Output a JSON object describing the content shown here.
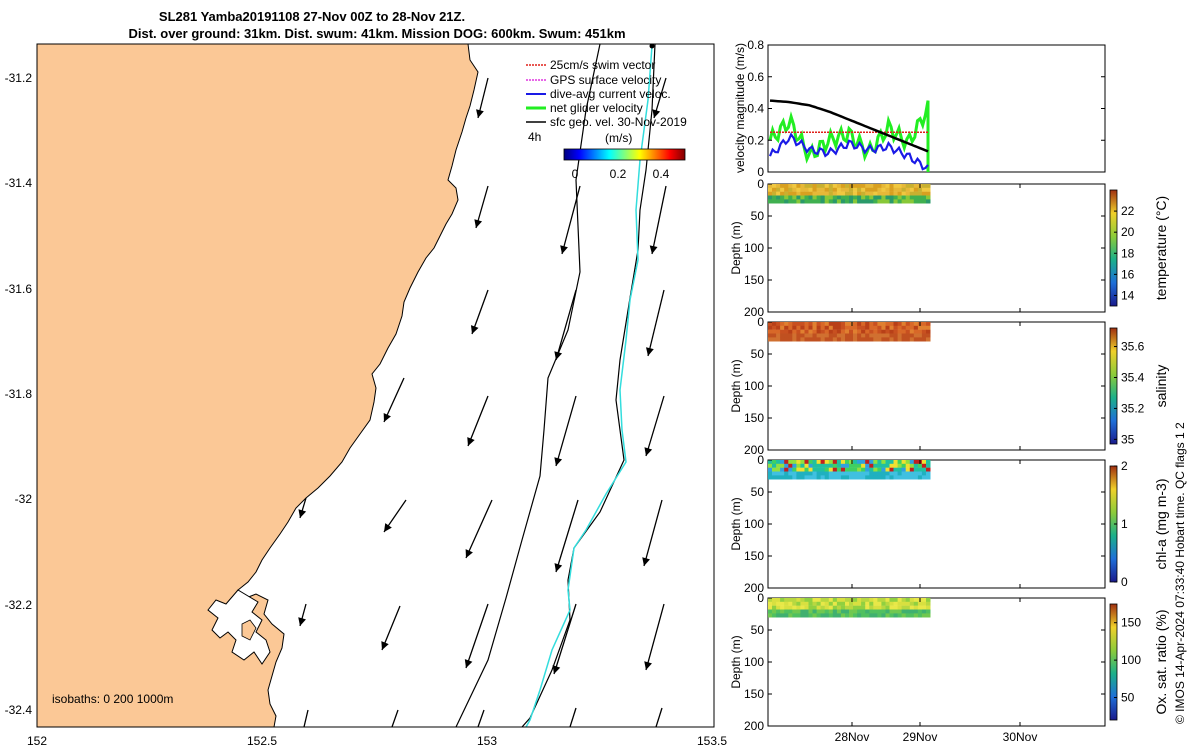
{
  "title": {
    "line1": "SL281 Yamba20191108 27-Nov 00Z to 28-Nov 21Z.",
    "line2": "Dist. over ground: 31km. Dist. swum: 41km. Mission DOG: 600km. Swum: 451km"
  },
  "colors": {
    "land": "#fbc896",
    "track": "#33dddd",
    "swim": "#e0201a",
    "gps": "#e033e0",
    "dive": "#1a1ae6",
    "net": "#22ee22",
    "geo": "#000000"
  },
  "map": {
    "legend": [
      {
        "label": "25cm/s swim vector",
        "color_key": "swim"
      },
      {
        "label": "GPS surface velocity",
        "color_key": "gps"
      },
      {
        "label": "dive-avg current veloc.",
        "color_key": "dive"
      },
      {
        "label": "net glider velocity",
        "color_key": "net"
      },
      {
        "label": "sfc geo. vel. 30-Nov-2019",
        "color_key": "geo"
      }
    ],
    "scale_label": "4h",
    "colorbar_unit": "(m/s)",
    "colorbar_ticks": [
      "0",
      "0.2",
      "0.4"
    ],
    "isobaths_label": "isobaths: 0   200  1000m",
    "x_ticks": [
      "152",
      "152.5",
      "153",
      "153.5"
    ],
    "y_ticks": [
      "-31.2",
      "-31.4",
      "-31.6",
      "-31.8",
      "-32",
      "-32.2",
      "-32.4"
    ]
  },
  "footer": "© IMOS 14-Apr-2024 07:33:40 Hobart time. QC flags 1  2",
  "chart_data": [
    {
      "type": "line",
      "ylabel": "velocity magnitude (m/s)",
      "ylim": [
        0,
        0.8
      ],
      "y_ticks": [
        "0",
        "0.2",
        "0.4",
        "0.6",
        "0.8"
      ],
      "series": [
        {
          "values": [
            0.45,
            0.44,
            0.42,
            0.38,
            0.33,
            0.28,
            0.23,
            0.18,
            0.13
          ]
        },
        {
          "values": [
            0.25,
            0.25,
            0.25,
            0.25,
            0.25,
            0.25,
            0.25,
            0.25,
            0.25
          ]
        },
        {
          "values": [
            0.1,
            0.22,
            0.14,
            0.12,
            0.18,
            0.14,
            0.16,
            0.1,
            0.02
          ]
        },
        {
          "values": [
            0.2,
            0.32,
            0.1,
            0.2,
            0.24,
            0.12,
            0.28,
            0.18,
            0.4
          ]
        }
      ]
    },
    {
      "type": "heatmap",
      "ylabel": "Depth (m)",
      "colorbar_label": "temperature (°C)",
      "y_ticks": [
        "0",
        "50",
        "100",
        "150",
        "200"
      ],
      "cb_ticks": [
        "14",
        "16",
        "18",
        "20",
        "22"
      ],
      "cb_range": [
        13,
        24
      ]
    },
    {
      "type": "heatmap",
      "ylabel": "Depth (m)",
      "colorbar_label": "salinity",
      "y_ticks": [
        "0",
        "50",
        "100",
        "150",
        "200"
      ],
      "cb_ticks": [
        "35",
        "35.2",
        "35.4",
        "35.6"
      ],
      "cb_range": [
        34.97,
        35.72
      ]
    },
    {
      "type": "heatmap",
      "ylabel": "Depth (m)",
      "colorbar_label": "chl-a (mg m-3)",
      "y_ticks": [
        "0",
        "50",
        "100",
        "150",
        "200"
      ],
      "cb_ticks": [
        "0",
        "1",
        "2"
      ],
      "cb_range": [
        0,
        2
      ]
    },
    {
      "type": "heatmap",
      "ylabel": "Depth (m)",
      "colorbar_label": "Ox. sat. ratio (%)",
      "y_ticks": [
        "0",
        "50",
        "100",
        "150",
        "200"
      ],
      "x_ticks": [
        "28Nov",
        "29Nov",
        "30Nov"
      ],
      "cb_ticks": [
        "50",
        "100",
        "150"
      ],
      "cb_range": [
        20,
        175
      ]
    }
  ]
}
